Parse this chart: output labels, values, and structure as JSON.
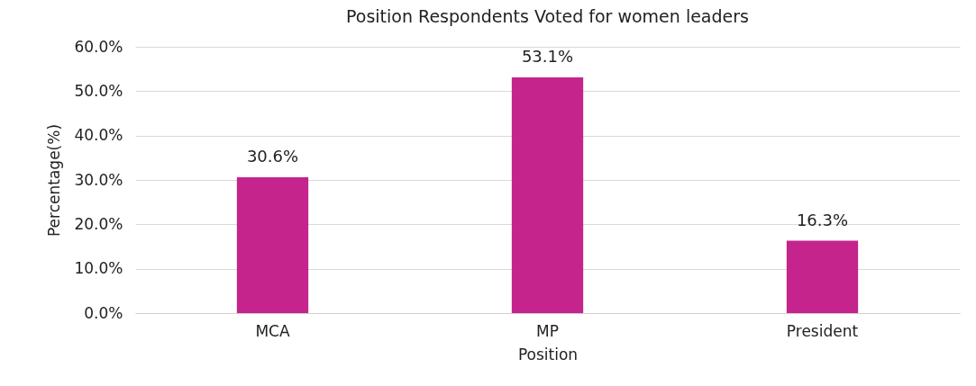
{
  "chart_data": {
    "type": "bar",
    "title": "Position Respondents Voted for women leaders",
    "xlabel": "Position",
    "ylabel": "Percentage(%)",
    "categories": [
      "MCA",
      "MP",
      "President"
    ],
    "values": [
      30.6,
      53.1,
      16.3
    ],
    "value_labels": [
      "30.6%",
      "53.1%",
      "16.3%"
    ],
    "color": "#c4248c",
    "ylim": [
      0,
      60
    ],
    "yticks": [
      {
        "value": 0,
        "label": "0.0%"
      },
      {
        "value": 10,
        "label": "10.0%"
      },
      {
        "value": 20,
        "label": "20.0%"
      },
      {
        "value": 30,
        "label": "30.0%"
      },
      {
        "value": 40,
        "label": "40.0%"
      },
      {
        "value": 50,
        "label": "50.0%"
      },
      {
        "value": 60,
        "label": "60.0%"
      }
    ],
    "grid": "y"
  }
}
